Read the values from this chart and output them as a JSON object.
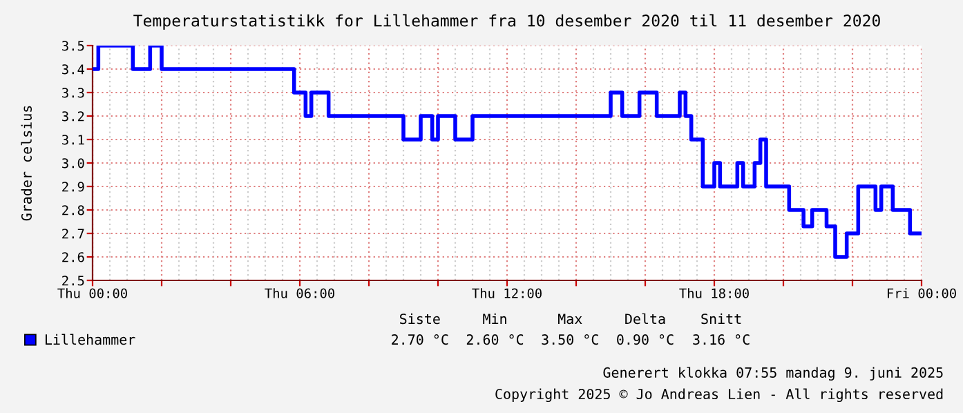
{
  "chart_data": {
    "type": "step",
    "title": "Temperaturstatistikk for Lillehammer fra 10 desember 2020 til 11 desember 2020",
    "ylabel": "Grader celsius",
    "xlim": [
      "2020-12-10T00:00",
      "2020-12-11T00:00"
    ],
    "xticks": [
      {
        "value": "2020-12-10T00:00",
        "label": "Thu 00:00"
      },
      {
        "value": "2020-12-10T02:00",
        "label": null
      },
      {
        "value": "2020-12-10T04:00",
        "label": null
      },
      {
        "value": "2020-12-10T06:00",
        "label": "Thu 06:00"
      },
      {
        "value": "2020-12-10T08:00",
        "label": null
      },
      {
        "value": "2020-12-10T10:00",
        "label": null
      },
      {
        "value": "2020-12-10T12:00",
        "label": "Thu 12:00"
      },
      {
        "value": "2020-12-10T14:00",
        "label": null
      },
      {
        "value": "2020-12-10T16:00",
        "label": null
      },
      {
        "value": "2020-12-10T18:00",
        "label": "Thu 18:00"
      },
      {
        "value": "2020-12-10T20:00",
        "label": null
      },
      {
        "value": "2020-12-10T22:00",
        "label": null
      },
      {
        "value": "2020-12-11T00:00",
        "label": "Fri 00:00"
      }
    ],
    "ylim": [
      2.5,
      3.5
    ],
    "yticks": [
      2.5,
      2.6,
      2.7,
      2.8,
      2.9,
      {
        "value": 3.0,
        "label": "3.0"
      },
      3.1,
      3.2,
      3.3,
      3.4,
      3.5
    ],
    "grid": true,
    "legend": "bottom left",
    "line_style": "solid",
    "marker": "none",
    "series": [
      {
        "name": "Lillehammer",
        "color": "#0000ff",
        "x": [
          "2020-12-10T00:00",
          "2020-12-10T00:10",
          "2020-12-10T01:10",
          "2020-12-10T01:40",
          "2020-12-10T02:00",
          "2020-12-10T05:50",
          "2020-12-10T06:10",
          "2020-12-10T06:20",
          "2020-12-10T06:50",
          "2020-12-10T09:00",
          "2020-12-10T09:30",
          "2020-12-10T09:50",
          "2020-12-10T10:00",
          "2020-12-10T10:30",
          "2020-12-10T11:00",
          "2020-12-10T15:00",
          "2020-12-10T15:20",
          "2020-12-10T15:50",
          "2020-12-10T16:20",
          "2020-12-10T17:00",
          "2020-12-10T17:10",
          "2020-12-10T17:20",
          "2020-12-10T17:40",
          "2020-12-10T18:00",
          "2020-12-10T18:10",
          "2020-12-10T18:40",
          "2020-12-10T18:50",
          "2020-12-10T19:10",
          "2020-12-10T19:20",
          "2020-12-10T19:30",
          "2020-12-10T20:10",
          "2020-12-10T20:35",
          "2020-12-10T20:50",
          "2020-12-10T21:15",
          "2020-12-10T21:30",
          "2020-12-10T21:50",
          "2020-12-10T22:10",
          "2020-12-10T22:40",
          "2020-12-10T22:50",
          "2020-12-10T23:10",
          "2020-12-10T23:40",
          "2020-12-10T23:58"
        ],
        "values": [
          3.4,
          3.5,
          3.4,
          3.5,
          3.4,
          3.3,
          3.2,
          3.3,
          3.2,
          3.1,
          3.2,
          3.1,
          3.2,
          3.1,
          3.2,
          3.3,
          3.2,
          3.3,
          3.2,
          3.3,
          3.2,
          3.1,
          2.9,
          3.0,
          2.9,
          3.0,
          2.9,
          3.0,
          3.1,
          2.9,
          2.8,
          2.73,
          2.8,
          2.73,
          2.6,
          2.7,
          2.9,
          2.8,
          2.9,
          2.8,
          2.7,
          2.7
        ]
      }
    ],
    "annotations": [
      "Siste",
      "Min",
      "Max",
      "Delta",
      "Snitt",
      "2.70 °C",
      "2.60 °C",
      "3.50 °C",
      "0.90 °C",
      "3.16 °C",
      "Generert klokka 07:55 mandag 9. juni 2025",
      "Copyright 2025 © Jo Andreas Lien - All rights reserved"
    ]
  }
}
